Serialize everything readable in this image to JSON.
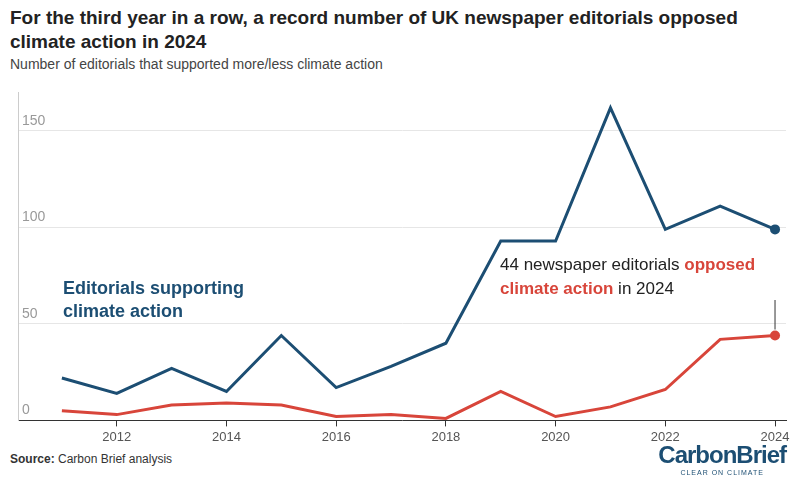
{
  "chart_data": {
    "type": "line",
    "title": "For the third year in a row, a record number of UK newspaper editorials opposed climate action in 2024",
    "subtitle": "Number of editorials that supported more/less climate action",
    "x": [
      2011,
      2012,
      2013,
      2014,
      2015,
      2016,
      2017,
      2018,
      2019,
      2020,
      2021,
      2022,
      2023,
      2024
    ],
    "series": [
      {
        "name": "Editorials supporting climate action",
        "color": "#1c4e73",
        "marker": "last",
        "values": [
          22,
          14,
          27,
          15,
          44,
          17,
          28,
          40,
          93,
          93,
          162,
          99,
          111,
          99
        ]
      },
      {
        "color": "#d8453a",
        "marker": "last",
        "values": [
          5,
          3,
          8,
          9,
          8,
          2,
          3,
          1,
          15,
          2,
          7,
          16,
          42,
          44
        ]
      }
    ],
    "xlim": [
      2010.2,
      2024.2
    ],
    "xticks": [
      2012,
      2014,
      2016,
      2018,
      2020,
      2022,
      2024
    ],
    "ylim": [
      0,
      170
    ],
    "yticks": [
      0,
      50,
      100,
      150
    ],
    "grid": true,
    "annotations": [
      {
        "text": "44 newspaper editorials opposed climate action in 2024",
        "highlight": "opposed climate action",
        "color": "#d8453a"
      }
    ],
    "source": "Source: Carbon Brief analysis",
    "logo": "CarbonBrief",
    "logo_tagline": "CLEAR ON CLIMATE"
  }
}
